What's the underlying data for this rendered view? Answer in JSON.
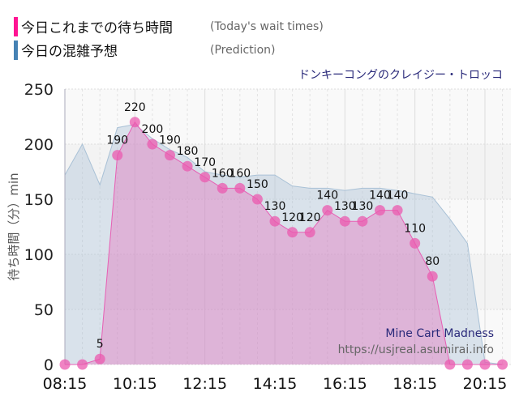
{
  "legend": [
    {
      "label": "今日これまでの待ち時間",
      "sub": "(Today's wait times)",
      "color": "#ff1493"
    },
    {
      "label": "今日の混雑予想",
      "sub": "(Prediction)",
      "color": "#4682b4"
    }
  ],
  "ride_name": "ドンキーコングのクレイジー・トロッコ",
  "chart_data": {
    "type": "area",
    "ylabel": "待ち時間（分）min",
    "ylim": [
      0,
      250
    ],
    "yticks": [
      0,
      50,
      100,
      150,
      200,
      250
    ],
    "xticks": [
      "08:15",
      "10:15",
      "12:15",
      "14:15",
      "16:15",
      "18:15",
      "20:15"
    ],
    "grid": true,
    "x": [
      "08:15",
      "08:45",
      "09:15",
      "09:45",
      "10:15",
      "10:45",
      "11:15",
      "11:45",
      "12:15",
      "12:45",
      "13:15",
      "13:45",
      "14:15",
      "14:45",
      "15:15",
      "15:45",
      "16:15",
      "16:45",
      "17:15",
      "17:45",
      "18:15",
      "18:45",
      "19:15",
      "19:45",
      "20:15",
      "20:45"
    ],
    "series": [
      {
        "name": "今日これまでの待ち時間",
        "color": "#e75fb4",
        "values": [
          0,
          0,
          5,
          190,
          220,
          200,
          190,
          180,
          170,
          160,
          160,
          150,
          130,
          120,
          120,
          140,
          130,
          130,
          140,
          140,
          110,
          80,
          0,
          0,
          0,
          0
        ]
      },
      {
        "name": "今日の混雑予想",
        "color": "#a9c1d6",
        "values": [
          172,
          200,
          163,
          215,
          218,
          205,
          195,
          188,
          175,
          172,
          170,
          172,
          172,
          162,
          160,
          160,
          158,
          160,
          160,
          158,
          155,
          152,
          132,
          110,
          2,
          0
        ]
      }
    ],
    "annotations": [
      "Mine Cart Madness",
      "https://usjreal.asumirai.info"
    ]
  }
}
